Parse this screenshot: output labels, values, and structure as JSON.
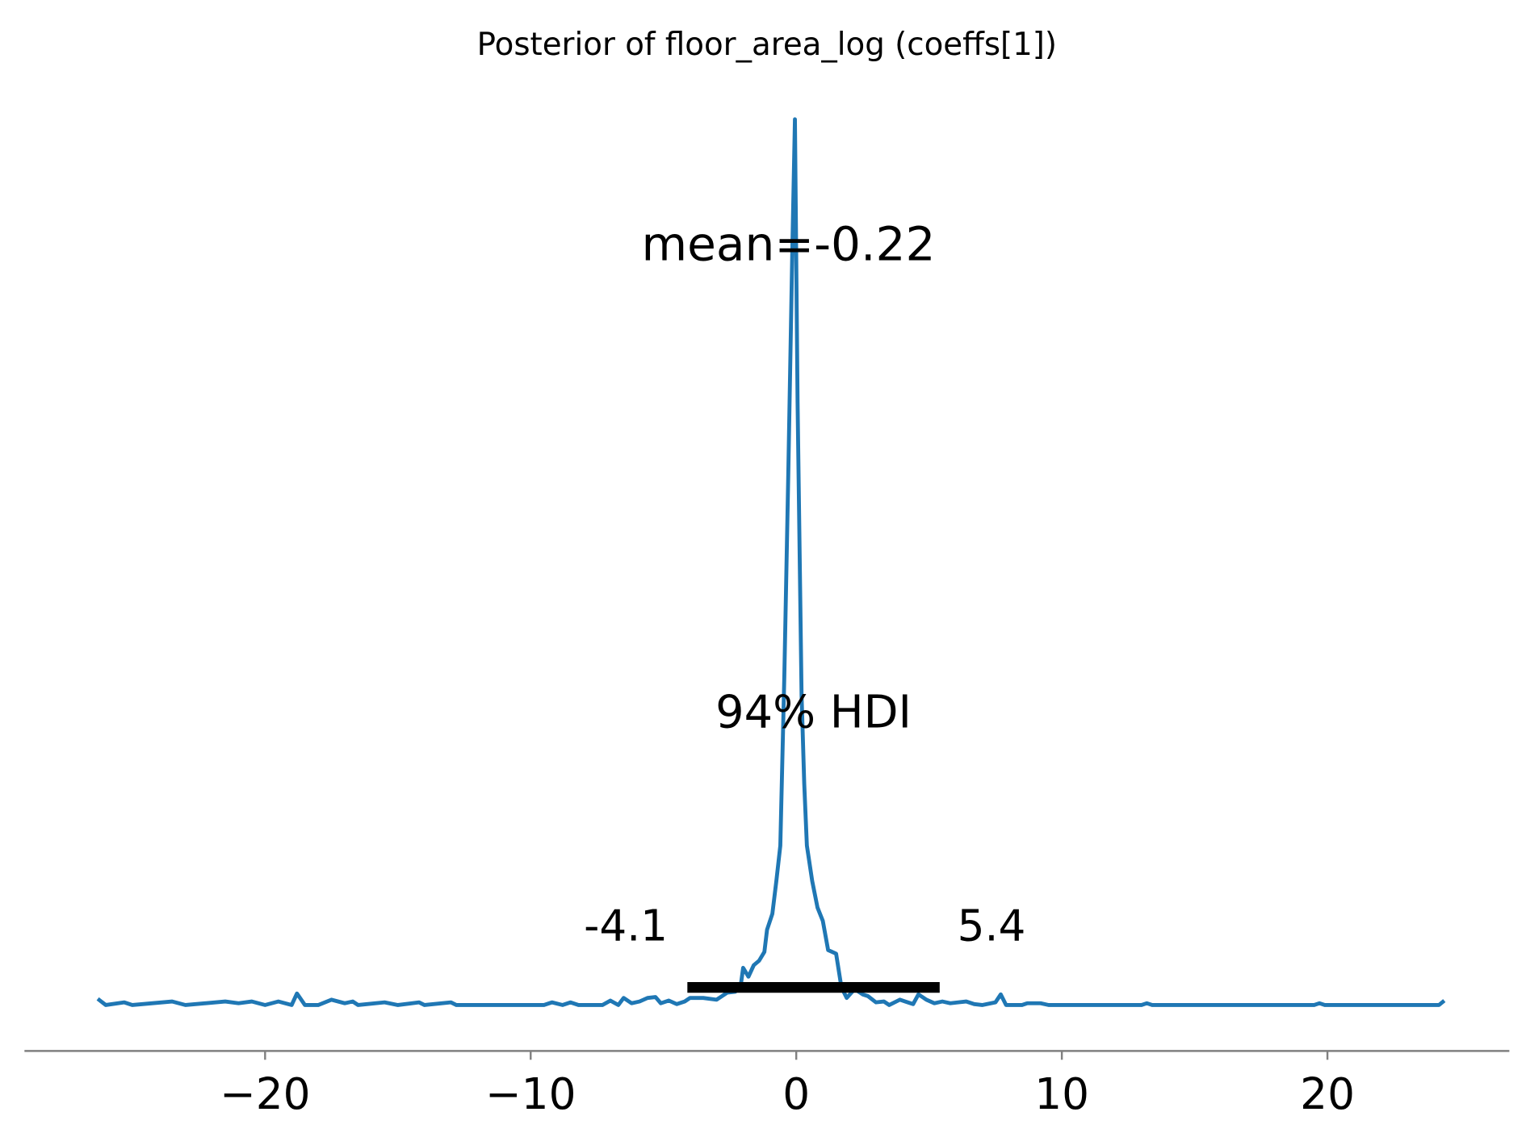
{
  "chart_data": {
    "type": "line",
    "title": "Posterior of floor_area_log (coeffs[1])",
    "color": "#1f77b4",
    "x": [
      -26.3,
      -26.0,
      -25.3,
      -25.0,
      -23.5,
      -23.0,
      -21.5,
      -21.0,
      -20.5,
      -20.0,
      -19.5,
      -19.0,
      -18.8,
      -18.5,
      -18.0,
      -17.5,
      -17.0,
      -16.7,
      -16.5,
      -15.5,
      -15.0,
      -14.2,
      -14.0,
      -13.0,
      -12.8,
      -9.5,
      -9.2,
      -8.8,
      -8.5,
      -8.2,
      -7.3,
      -7.0,
      -6.7,
      -6.5,
      -6.2,
      -5.9,
      -5.6,
      -5.3,
      -5.1,
      -4.8,
      -4.5,
      -4.2,
      -4.0,
      -3.5,
      -3.0,
      -2.6,
      -2.3,
      -2.1,
      -2.0,
      -1.8,
      -1.6,
      -1.4,
      -1.2,
      -1.1,
      -0.9,
      -0.75,
      -0.6,
      -0.45,
      -0.3,
      -0.15,
      -0.05,
      0.05,
      0.2,
      0.3,
      0.4,
      0.6,
      0.8,
      1.0,
      1.2,
      1.5,
      1.7,
      1.9,
      2.2,
      2.5,
      2.7,
      3.0,
      3.3,
      3.5,
      3.9,
      4.1,
      4.4,
      4.6,
      4.9,
      5.2,
      5.5,
      5.8,
      6.1,
      6.4,
      6.7,
      7.0,
      7.5,
      7.7,
      7.9,
      8.5,
      8.7,
      9.2,
      9.5,
      10.0,
      13.0,
      13.2,
      13.4,
      19.5,
      19.7,
      19.9,
      24.2,
      24.4
    ],
    "values": [
      0.007,
      0,
      0.003,
      0,
      0.004,
      0,
      0.004,
      0.002,
      0.004,
      0,
      0.004,
      0,
      0.013,
      0,
      0,
      0.006,
      0.002,
      0.004,
      0,
      0.003,
      0,
      0.003,
      0,
      0.003,
      0,
      0,
      0.003,
      0,
      0.003,
      0,
      0,
      0.005,
      0,
      0.008,
      0.002,
      0.004,
      0.008,
      0.009,
      0.002,
      0.005,
      0.001,
      0.004,
      0.008,
      0.008,
      0.006,
      0.014,
      0.015,
      0.02,
      0.042,
      0.032,
      0.045,
      0.05,
      0.06,
      0.085,
      0.103,
      0.14,
      0.18,
      0.37,
      0.6,
      0.85,
      1.0,
      0.68,
      0.35,
      0.25,
      0.18,
      0.14,
      0.11,
      0.095,
      0.062,
      0.058,
      0.02,
      0.008,
      0.018,
      0.012,
      0.01,
      0.003,
      0.004,
      0,
      0.006,
      0.004,
      0.001,
      0.012,
      0.006,
      0.002,
      0.004,
      0.002,
      0.003,
      0.004,
      0.001,
      0,
      0.003,
      0.012,
      0,
      0,
      0.002,
      0.002,
      0,
      0,
      0,
      0.002,
      0,
      0,
      0.002,
      0,
      0,
      0.005
    ],
    "xlim": [
      -29.06,
      26.85
    ],
    "ylim": [
      0,
      1
    ],
    "xticks": [
      {
        "value": -20,
        "label": "−20"
      },
      {
        "value": -10,
        "label": "−10"
      },
      0,
      10,
      20
    ],
    "annotations": [
      "mean=-0.22",
      "94% HDI"
    ],
    "hdi": [
      -4.1,
      5.4
    ]
  }
}
